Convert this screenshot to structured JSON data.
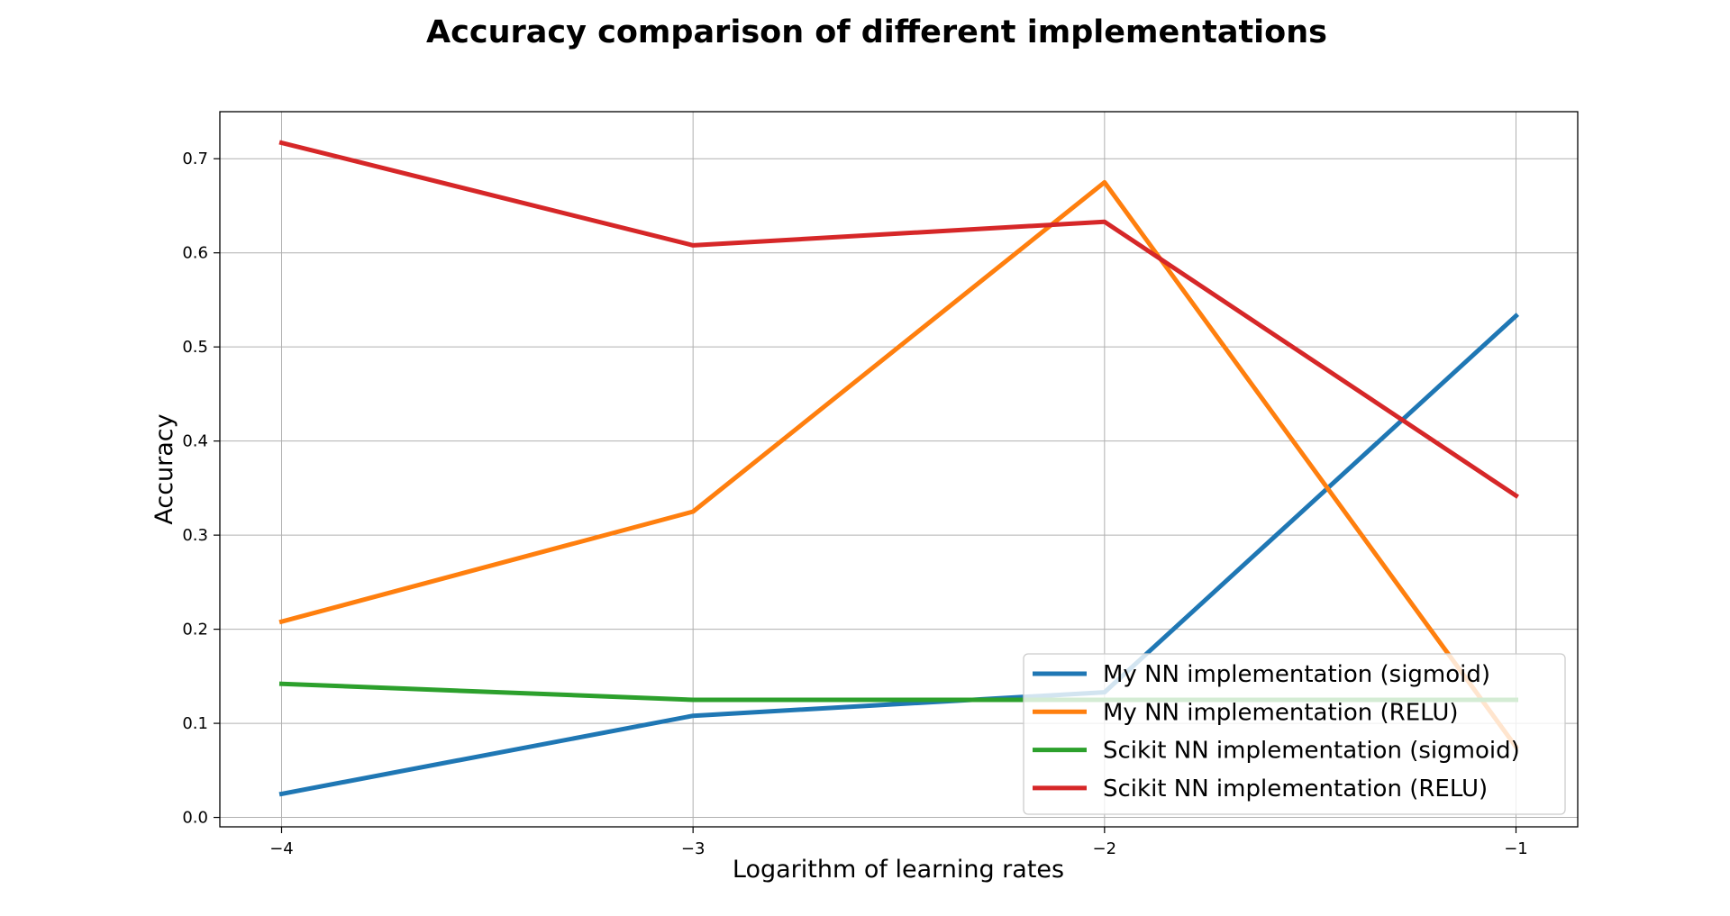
{
  "chart_data": {
    "type": "line",
    "title": "Accuracy comparison of different implementations",
    "xlabel": "Logarithm of learning rates",
    "ylabel": "Accuracy",
    "x": [
      -4,
      -3,
      -2,
      -1
    ],
    "xlim": [
      -4.15,
      -0.85
    ],
    "ylim": [
      -0.01,
      0.75
    ],
    "xticks": [
      -4,
      -3,
      -2,
      -1
    ],
    "xtick_labels": [
      "−4",
      "−3",
      "−2",
      "−1"
    ],
    "yticks": [
      0.0,
      0.1,
      0.2,
      0.3,
      0.4,
      0.5,
      0.6,
      0.7
    ],
    "ytick_labels": [
      "0.0",
      "0.1",
      "0.2",
      "0.3",
      "0.4",
      "0.5",
      "0.6",
      "0.7"
    ],
    "grid": true,
    "legend_position": "lower-right",
    "series": [
      {
        "name": "My NN implementation (sigmoid)",
        "color": "#1f77b4",
        "values": [
          0.025,
          0.108,
          0.133,
          0.533
        ]
      },
      {
        "name": "My NN implementation (RELU)",
        "color": "#ff7f0e",
        "values": [
          0.208,
          0.325,
          0.675,
          0.075
        ]
      },
      {
        "name": "Scikit NN implementation (sigmoid)",
        "color": "#2ca02c",
        "values": [
          0.142,
          0.125,
          0.125,
          0.125
        ]
      },
      {
        "name": "Scikit NN implementation (RELU)",
        "color": "#d62728",
        "values": [
          0.717,
          0.608,
          0.633,
          0.342
        ]
      }
    ]
  }
}
